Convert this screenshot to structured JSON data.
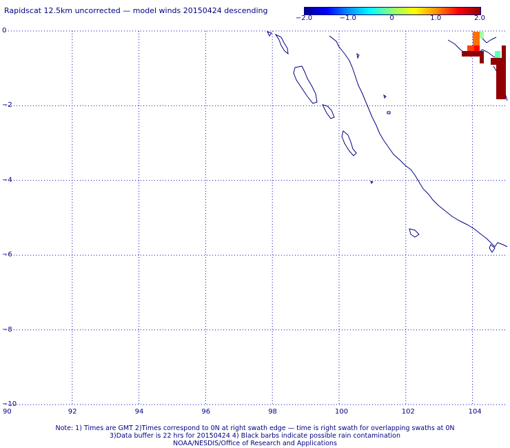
{
  "title": "Rapidscat 12.5km uncorrected — model winds 20150424 descending",
  "colorbar": {
    "ticks": [
      "−2.0",
      "−1.0",
      "0",
      "1.0",
      "2.0"
    ],
    "tick_values": [
      -2.0,
      -1.0,
      0.0,
      1.0,
      2.0
    ],
    "colors": [
      "#000090",
      "#0000ff",
      "#0090ff",
      "#00ffff",
      "#90ff70",
      "#ffff00",
      "#ff9000",
      "#ff0000",
      "#900000"
    ]
  },
  "map": {
    "lon_range": [
      90,
      105
    ],
    "lat_range": [
      -10,
      0
    ],
    "lon_ticks": [
      "90",
      "92",
      "94",
      "96",
      "98",
      "100",
      "102",
      "104"
    ],
    "lon_tick_values": [
      90,
      92,
      94,
      96,
      98,
      100,
      102,
      104
    ],
    "lat_ticks": [
      "0",
      "−2",
      "−4",
      "−6",
      "−8",
      "−10"
    ],
    "lat_tick_values": [
      0,
      -2,
      -4,
      -6,
      -8,
      -10
    ],
    "grid": true,
    "coast_color": "#000080",
    "grid_color": "#0000c0"
  },
  "notes": {
    "line1": "Note: 1) Times are GMT 2)Times correspond to 0N at right swath edge — time is right swath for overlapping swaths at 0N",
    "line2": "3)Data buffer is 22 hrs for 20150424 4) Black barbs indicate possible rain contamination",
    "line3": "NOAA/NESDIS/Office of Research and Applications"
  }
}
